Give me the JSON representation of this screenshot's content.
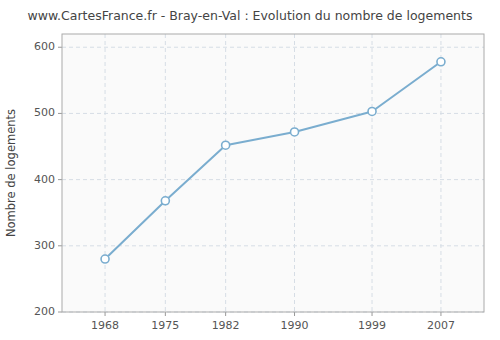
{
  "chart_data": {
    "type": "line",
    "title": "www.CartesFrance.fr - Bray-en-Val : Evolution du nombre de logements",
    "ylabel": "Nombre de logements",
    "x": [
      1968,
      1975,
      1982,
      1990,
      1999,
      2007
    ],
    "values": [
      280,
      368,
      452,
      472,
      503,
      578
    ],
    "xlim": [
      1963,
      2012
    ],
    "ylim": [
      200,
      620
    ],
    "xticks": [
      1968,
      1975,
      1982,
      1990,
      1999,
      2007
    ],
    "yticks": [
      200,
      300,
      400,
      500,
      600
    ],
    "color": "#7aadcf",
    "marker": "circle",
    "grid": true
  }
}
